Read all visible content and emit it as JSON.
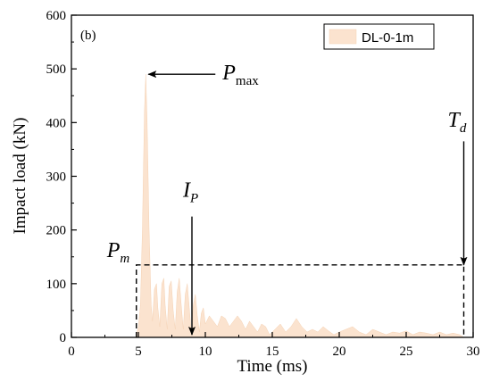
{
  "chart_data": {
    "type": "area",
    "panel_label": "(b)",
    "xlabel": "Time (ms)",
    "ylabel": "Impact load (kN)",
    "xlim": [
      0,
      30
    ],
    "ylim": [
      0,
      600
    ],
    "xticks": [
      0,
      5,
      10,
      15,
      20,
      25,
      30
    ],
    "yticks": [
      0,
      100,
      200,
      300,
      400,
      500,
      600
    ],
    "grid": false,
    "legend_position": "top-right",
    "series": [
      {
        "name": "DL-0-1m",
        "color": "#fbe3cf",
        "x": [
          0,
          4.8,
          5.0,
          5.15,
          5.3,
          5.45,
          5.55,
          5.65,
          5.8,
          5.95,
          6.05,
          6.2,
          6.35,
          6.45,
          6.6,
          6.75,
          6.9,
          7.0,
          7.15,
          7.3,
          7.45,
          7.6,
          7.75,
          7.9,
          8.05,
          8.2,
          8.35,
          8.5,
          8.65,
          8.8,
          8.95,
          9.1,
          9.25,
          9.4,
          9.55,
          9.7,
          9.85,
          10.0,
          10.3,
          10.6,
          10.9,
          11.2,
          11.5,
          11.8,
          12.1,
          12.4,
          12.7,
          13.0,
          13.3,
          13.6,
          13.9,
          14.2,
          14.5,
          14.8,
          15.2,
          15.6,
          16.0,
          16.4,
          16.8,
          17.2,
          17.6,
          18.0,
          18.4,
          18.8,
          19.2,
          19.6,
          20.0,
          20.5,
          21.0,
          21.5,
          22.0,
          22.5,
          23.0,
          23.5,
          24.0,
          24.5,
          25.0,
          25.5,
          26.0,
          26.5,
          27.0,
          27.5,
          28.0,
          28.5,
          29.0,
          29.3
        ],
        "y": [
          0,
          0,
          20,
          60,
          200,
          420,
          490,
          400,
          200,
          60,
          30,
          90,
          100,
          55,
          20,
          100,
          110,
          60,
          15,
          95,
          105,
          50,
          15,
          85,
          110,
          60,
          15,
          80,
          100,
          55,
          10,
          60,
          80,
          40,
          10,
          45,
          55,
          25,
          40,
          30,
          20,
          40,
          35,
          20,
          30,
          40,
          30,
          15,
          30,
          20,
          10,
          25,
          20,
          5,
          15,
          25,
          10,
          20,
          35,
          20,
          10,
          15,
          10,
          20,
          12,
          5,
          10,
          15,
          20,
          10,
          5,
          15,
          10,
          5,
          10,
          8,
          12,
          5,
          10,
          8,
          5,
          10,
          5,
          8,
          5,
          0
        ]
      }
    ],
    "annotations": {
      "pmax": {
        "label": "P",
        "sub": "max",
        "at_x": 5.55,
        "at_y": 490
      },
      "ip": {
        "label": "I",
        "sub": "P",
        "at_x": 9.0,
        "at_y": 5
      },
      "td": {
        "label": "T",
        "sub": "d",
        "at_x": 29.3,
        "at_y": 135
      },
      "pm": {
        "label": "P",
        "sub": "m",
        "value": 135,
        "x_start": 4.85,
        "x_end": 29.3
      }
    }
  }
}
